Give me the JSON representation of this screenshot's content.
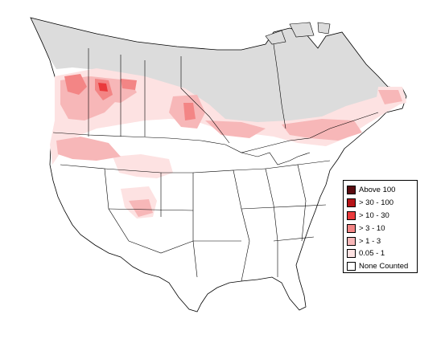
{
  "map": {
    "colors": {
      "background": "#ffffff",
      "not_surveyed": "#dcdcdc",
      "border": "#000000"
    }
  },
  "legend": {
    "items": [
      {
        "label": "Above 100",
        "color": "#5a0b10"
      },
      {
        "label": "> 30 - 100",
        "color": "#b51418"
      },
      {
        "label": "> 10 - 30",
        "color": "#ea3a3c"
      },
      {
        "label": "> 3 - 10",
        "color": "#f38585"
      },
      {
        "label": "> 1 - 3",
        "color": "#f7b7b8"
      },
      {
        "label": "0.05 - 1",
        "color": "#fde2e2"
      },
      {
        "label": "None Counted",
        "color": "#ffffff"
      }
    ]
  }
}
